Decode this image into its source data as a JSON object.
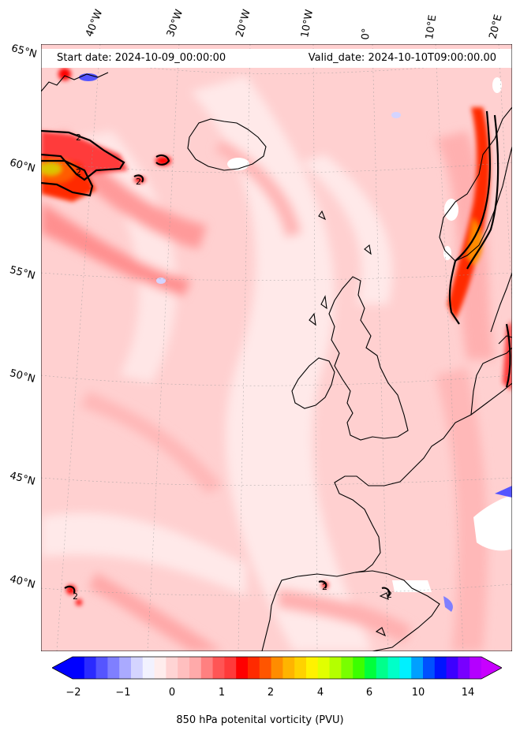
{
  "map": {
    "start_label": "Start date: 2024-10-09_00:00:00",
    "valid_label": "Valid_date: 2024-10-10T09:00:00.00",
    "longitude_labels": [
      "40°W",
      "30°W",
      "20°W",
      "10°W",
      "0°",
      "10°E",
      "20°E"
    ],
    "latitude_labels": [
      "65°N",
      "60°N",
      "55°N",
      "50°N",
      "45°N",
      "40°N"
    ],
    "field": "850 hPa potenital vorticity",
    "contour_label": "2",
    "background_color": "#ffd0d0",
    "coastline_color": "#000000"
  },
  "colorbar": {
    "label": "850 hPa potenital vorticity (PVU)",
    "ticks": [
      "−2",
      "−1",
      "0",
      "1",
      "2",
      "4",
      "6",
      "10",
      "14"
    ],
    "colors": [
      "#0000ff",
      "#2a2aff",
      "#5555ff",
      "#7f7fff",
      "#aaaaff",
      "#d4d4ff",
      "#f2f2ff",
      "#ffeded",
      "#ffd4d4",
      "#ffbfbf",
      "#ffaaaa",
      "#ff8080",
      "#ff5555",
      "#ff3a3a",
      "#ff0000",
      "#ff2a00",
      "#ff5500",
      "#ff8c00",
      "#ffb400",
      "#ffd200",
      "#fff200",
      "#e1ff00",
      "#b4ff00",
      "#78ff00",
      "#3cff00",
      "#00ff3c",
      "#00ff8c",
      "#00ffc8",
      "#00f0ff",
      "#00a0ff",
      "#0050ff",
      "#0014ff",
      "#3c00ff",
      "#7800ff",
      "#b400ff"
    ],
    "under_color": "#0000ff",
    "over_color": "#c800ff"
  }
}
